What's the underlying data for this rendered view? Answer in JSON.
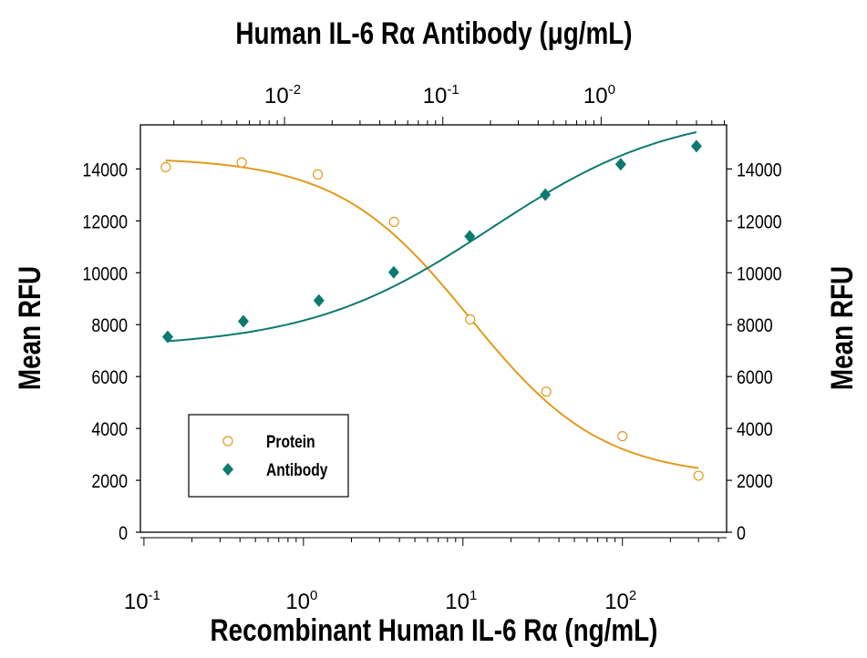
{
  "chart_data": {
    "type": "line",
    "title": "Human IL-6 Rα Antibody (μg/mL)",
    "xlabel": "Recombinant Human IL-6 Rα (ng/mL)",
    "x2label": "Human IL-6 Rα Antibody (μg/mL)",
    "ylabel": "Mean RFU",
    "y2label": "Mean RFU",
    "xscale": "log",
    "xlim": [
      0.095,
      450
    ],
    "x2lim": [
      0.00123,
      6.2
    ],
    "ylim": [
      0,
      15700
    ],
    "x_ticks": [
      "-1",
      "0",
      "1",
      "2"
    ],
    "x2_ticks": [
      "-2",
      "-1",
      "0"
    ],
    "y_ticks": [
      0,
      2000,
      4000,
      6000,
      8000,
      10000,
      12000,
      14000
    ],
    "grid": false,
    "legend_position": "bottom-left",
    "series": [
      {
        "name": "Protein",
        "axis": "bottom",
        "marker": "open-circle",
        "color": "#E39A1E",
        "x": [
          0.137,
          0.41,
          1.23,
          3.7,
          11.1,
          33.3,
          100,
          300
        ],
        "y": [
          14070,
          14250,
          13790,
          11960,
          8200,
          5420,
          3700,
          2180
        ]
      },
      {
        "name": "Antibody",
        "axis": "top",
        "marker": "filled-diamond",
        "color": "#0B7A70",
        "x": [
          0.00183,
          0.0055,
          0.0165,
          0.049,
          0.148,
          0.444,
          1.33,
          4.0
        ],
        "y": [
          7530,
          8130,
          8930,
          10020,
          11400,
          13010,
          14180,
          14880
        ]
      }
    ]
  }
}
